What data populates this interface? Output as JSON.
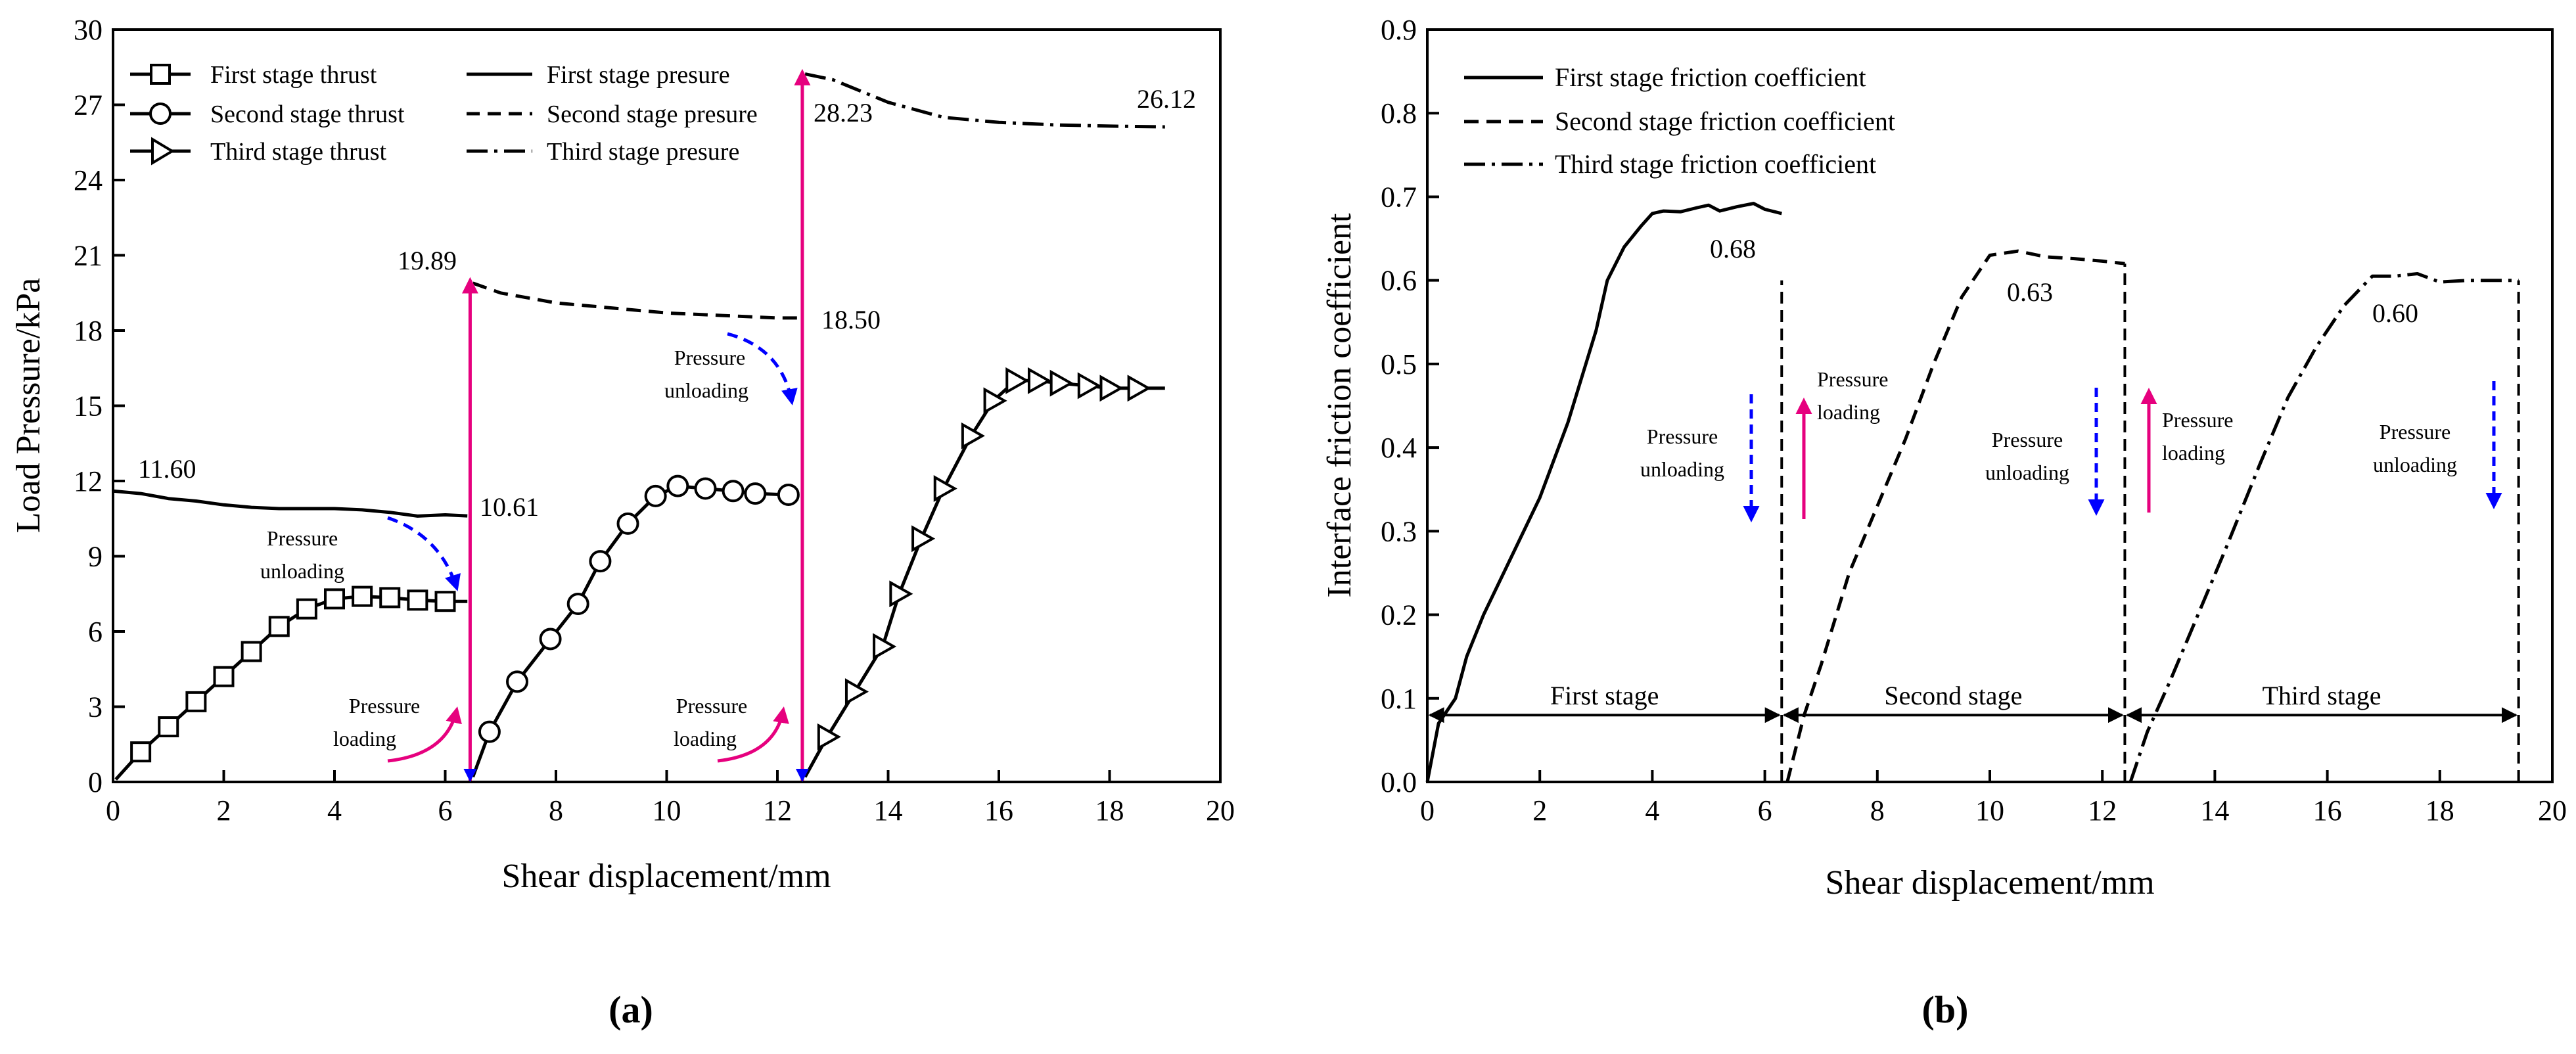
{
  "chart_data": [
    {
      "type": "line",
      "panel": "(a)",
      "xlabel": "Shear displacement/mm",
      "ylabel": "Load Pressure/kPa",
      "xlim": [
        0,
        20
      ],
      "ylim": [
        0,
        30
      ],
      "xticks": [
        0,
        2,
        4,
        6,
        8,
        10,
        12,
        14,
        16,
        18,
        20
      ],
      "yticks": [
        0,
        3,
        6,
        9,
        12,
        15,
        18,
        21,
        24,
        27,
        30
      ],
      "legend": [
        {
          "label": "First stage thrust",
          "style": "solid",
          "marker": "square"
        },
        {
          "label": "First stage presure",
          "style": "solid",
          "marker": "none"
        },
        {
          "label": "Second stage thrust",
          "style": "solid",
          "marker": "circle"
        },
        {
          "label": "Second stage presure",
          "style": "dashed",
          "marker": "none"
        },
        {
          "label": "Third stage thrust",
          "style": "solid",
          "marker": "triangle-right"
        },
        {
          "label": "Third stage presure",
          "style": "dashdot",
          "marker": "none"
        }
      ],
      "series": [
        {
          "name": "First stage thrust",
          "style": "solid",
          "marker": "square",
          "x": [
            0.05,
            0.5,
            1.0,
            1.5,
            2.0,
            2.5,
            3.0,
            3.5,
            4.0,
            4.5,
            5.0,
            5.5,
            6.0,
            6.4
          ],
          "y": [
            0.1,
            1.2,
            2.2,
            3.2,
            4.2,
            5.2,
            6.2,
            6.9,
            7.3,
            7.4,
            7.35,
            7.25,
            7.2,
            7.2
          ],
          "marker_x": [
            0.5,
            1.0,
            1.5,
            2.0,
            2.5,
            3.0,
            3.5,
            4.0,
            4.5,
            5.0,
            5.5,
            6.0
          ]
        },
        {
          "name": "First stage presure",
          "style": "solid",
          "marker": "none",
          "x": [
            0,
            0.5,
            1.0,
            1.5,
            2.0,
            2.5,
            3.0,
            3.5,
            4.0,
            4.5,
            5.0,
            5.5,
            6.0,
            6.4
          ],
          "y": [
            11.6,
            11.5,
            11.3,
            11.2,
            11.05,
            10.95,
            10.9,
            10.9,
            10.9,
            10.85,
            10.75,
            10.6,
            10.65,
            10.61
          ]
        },
        {
          "name": "Second stage thrust",
          "style": "solid",
          "marker": "circle",
          "x": [
            6.5,
            6.8,
            7.3,
            7.9,
            8.4,
            8.8,
            9.3,
            9.8,
            10.2,
            10.7,
            11.2,
            11.6,
            12.2
          ],
          "y": [
            0.2,
            2.0,
            4.0,
            5.7,
            7.1,
            8.8,
            10.3,
            11.4,
            11.8,
            11.7,
            11.6,
            11.5,
            11.45
          ],
          "marker_x": [
            6.8,
            7.3,
            7.9,
            8.4,
            8.8,
            9.3,
            9.8,
            10.2,
            10.7,
            11.2,
            11.6,
            12.2
          ]
        },
        {
          "name": "Second stage presure",
          "style": "dashed",
          "marker": "none",
          "x": [
            6.5,
            7.0,
            8.0,
            9.0,
            10.0,
            11.0,
            12.0,
            12.4
          ],
          "y": [
            19.89,
            19.5,
            19.1,
            18.9,
            18.7,
            18.6,
            18.5,
            18.5
          ]
        },
        {
          "name": "Third stage thrust",
          "style": "solid",
          "marker": "triangle-right",
          "x": [
            12.5,
            12.9,
            13.4,
            13.9,
            14.2,
            14.6,
            15.0,
            15.5,
            15.9,
            16.3,
            16.7,
            17.1,
            17.6,
            18.0,
            18.5,
            19.0
          ],
          "y": [
            0.2,
            1.8,
            3.6,
            5.4,
            7.5,
            9.7,
            11.7,
            13.8,
            15.2,
            16.0,
            16.0,
            15.9,
            15.8,
            15.7,
            15.7,
            15.7
          ],
          "marker_x": [
            12.9,
            13.4,
            13.9,
            14.2,
            14.6,
            15.0,
            15.5,
            15.9,
            16.3,
            16.7,
            17.1,
            17.6,
            18.0,
            18.5
          ]
        },
        {
          "name": "Third stage presure",
          "style": "dashdot",
          "marker": "none",
          "x": [
            12.5,
            13.0,
            14.0,
            15.0,
            16.0,
            17.0,
            18.0,
            19.0
          ],
          "y": [
            28.23,
            28.0,
            27.1,
            26.5,
            26.3,
            26.2,
            26.15,
            26.12
          ]
        }
      ],
      "verticals": [
        {
          "x": 6.45,
          "y0": 0,
          "y1": 20.0,
          "style": "magenta-solid"
        },
        {
          "x": 6.45,
          "y0": 0,
          "y1": 10.61,
          "style": "magenta-dashed"
        },
        {
          "x": 12.45,
          "y0": 0,
          "y1": 28.3,
          "style": "magenta-solid"
        },
        {
          "x": 12.45,
          "y0": 0,
          "y1": 18.5,
          "style": "magenta-dashed"
        }
      ],
      "value_labels": [
        "11.60",
        "10.61",
        "19.89",
        "18.50",
        "28.23",
        "26.12"
      ],
      "annotations": {
        "unloading_1": [
          "Pressure",
          "unloading"
        ],
        "loading_1": [
          "Pressure",
          "loading"
        ],
        "unloading_2": [
          "Pressure",
          "unloading"
        ],
        "loading_2": [
          "Pressure",
          "loading"
        ]
      }
    },
    {
      "type": "line",
      "panel": "(b)",
      "xlabel": "Shear displacement/mm",
      "ylabel": "Interface friction coefficient",
      "xlim": [
        0,
        20
      ],
      "ylim": [
        0.0,
        0.9
      ],
      "xticks": [
        0,
        2,
        4,
        6,
        8,
        10,
        12,
        14,
        16,
        18,
        20
      ],
      "yticks": [
        "0.0",
        "0.1",
        "0.2",
        "0.3",
        "0.4",
        "0.5",
        "0.6",
        "0.7",
        "0.8",
        "0.9"
      ],
      "legend": [
        {
          "label": "First stage friction coefficient",
          "style": "solid"
        },
        {
          "label": "Second stage friction coefficient",
          "style": "dashed"
        },
        {
          "label": "Third stage friction coefficient",
          "style": "dashdot"
        }
      ],
      "series": [
        {
          "name": "First stage friction coefficient",
          "style": "solid",
          "x": [
            0,
            0.2,
            0.5,
            0.7,
            1.0,
            1.5,
            2.0,
            2.5,
            3.0,
            3.2,
            3.5,
            3.8,
            4.0,
            4.2,
            4.5,
            4.8,
            5.0,
            5.2,
            5.5,
            5.8,
            6.0,
            6.3
          ],
          "y": [
            0,
            0.07,
            0.1,
            0.15,
            0.2,
            0.27,
            0.34,
            0.43,
            0.54,
            0.6,
            0.64,
            0.665,
            0.68,
            0.683,
            0.682,
            0.687,
            0.69,
            0.683,
            0.688,
            0.692,
            0.685,
            0.68
          ]
        },
        {
          "name": "Second stage friction coefficient",
          "style": "dashed",
          "x": [
            6.4,
            6.7,
            7.0,
            7.5,
            8.0,
            8.5,
            9.0,
            9.5,
            10.0,
            10.5,
            11.0,
            11.5,
            12.0,
            12.4
          ],
          "y": [
            0.0,
            0.08,
            0.14,
            0.25,
            0.33,
            0.41,
            0.5,
            0.58,
            0.63,
            0.635,
            0.628,
            0.626,
            0.623,
            0.62
          ]
        },
        {
          "name": "Third stage friction coefficient",
          "style": "dashdot",
          "x": [
            12.5,
            12.8,
            13.2,
            13.7,
            14.2,
            14.8,
            15.3,
            15.8,
            16.3,
            16.8,
            17.2,
            17.6,
            18.0,
            18.5,
            19.0,
            19.4
          ],
          "y": [
            0.0,
            0.06,
            0.12,
            0.2,
            0.28,
            0.38,
            0.46,
            0.52,
            0.57,
            0.605,
            0.605,
            0.608,
            0.598,
            0.6,
            0.6,
            0.6
          ]
        }
      ],
      "verticals": [
        {
          "x": 6.3,
          "y0": 0,
          "y1": 0.6
        },
        {
          "x": 12.4,
          "y0": 0,
          "y1": 0.62
        },
        {
          "x": 19.4,
          "y0": 0,
          "y1": 0.6
        }
      ],
      "stage_spans": [
        {
          "label": "First stage",
          "x0": 0,
          "x1": 6.3,
          "y": 0.08
        },
        {
          "label": "Second stage",
          "x0": 6.3,
          "x1": 12.4,
          "y": 0.08
        },
        {
          "label": "Third stage",
          "x0": 12.4,
          "x1": 19.4,
          "y": 0.08
        }
      ],
      "value_labels": [
        "0.68",
        "0.63",
        "0.60"
      ],
      "annotations": {
        "unloading_1": [
          "Pressure",
          "unloading"
        ],
        "loading_1": [
          "Pressure",
          "loading"
        ],
        "unloading_2": [
          "Pressure",
          "unloading"
        ],
        "loading_2": [
          "Pressure",
          "loading"
        ],
        "unloading_3": [
          "Pressure",
          "unloading"
        ]
      }
    }
  ],
  "captions": {
    "a": "(a)",
    "b": "(b)"
  },
  "colors": {
    "magenta": "#e6007e",
    "blue": "#0000ff",
    "ink": "#000000"
  }
}
